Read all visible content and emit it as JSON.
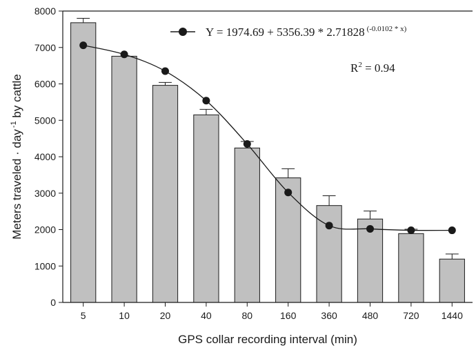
{
  "chart_data": {
    "type": "bar",
    "xlabel": "GPS collar recording interval (min)",
    "ylabel": "Meters traveled · day",
    "ylabel_sup": "-1",
    "ylabel_tail": " by cattle",
    "ylim": [
      0,
      8000
    ],
    "yticks": [
      0,
      1000,
      2000,
      3000,
      4000,
      5000,
      6000,
      7000,
      8000
    ],
    "categories": [
      "5",
      "10",
      "20",
      "40",
      "80",
      "160",
      "360",
      "480",
      "720",
      "1440"
    ],
    "series": [
      {
        "kind": "bar",
        "values": [
          7680,
          6760,
          5960,
          5150,
          4240,
          3420,
          2660,
          2290,
          1890,
          1190
        ],
        "error_plus": [
          120,
          0,
          80,
          150,
          180,
          250,
          270,
          220,
          120,
          140
        ],
        "color": "#c0c0c0"
      },
      {
        "kind": "line",
        "marker": "circle",
        "values": [
          7060,
          6810,
          6350,
          5540,
          4350,
          3020,
          2110,
          2020,
          1980,
          1980
        ],
        "color": "#1a1a1a"
      }
    ],
    "legend": {
      "position": "top-right",
      "equation": "Y = 1974.69 + 5356.39 * 2.71828",
      "exponent": "(-0.0102 * x)",
      "r2_label": "R",
      "r2_sup": "2",
      "r2_value": " = 0.94"
    },
    "grid": false
  }
}
